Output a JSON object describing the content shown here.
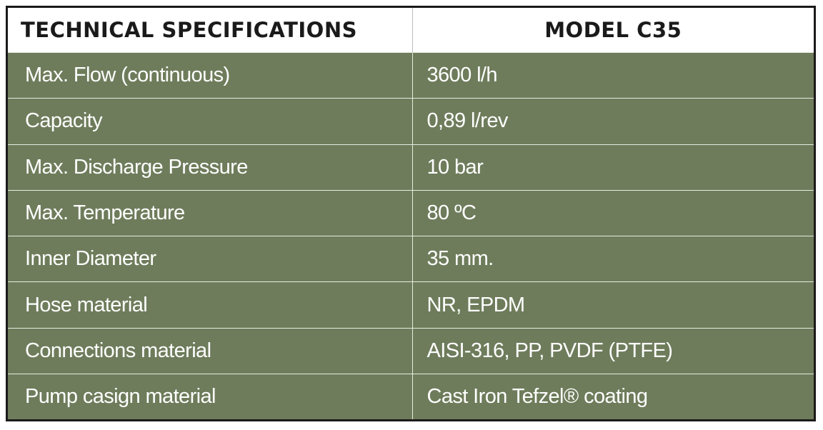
{
  "table": {
    "header": [
      "TECHNICAL SPECIFICATIONS",
      "MODEL C35"
    ],
    "rows": [
      [
        "Max. Flow (continuous)",
        "3600 l/h"
      ],
      [
        "Capacity",
        "0,89 l/rev"
      ],
      [
        "Max. Discharge Pressure",
        "10 bar"
      ],
      [
        "Max. Temperature",
        "80 ºC"
      ],
      [
        "Inner Diameter",
        "35 mm."
      ],
      [
        "Hose material",
        "NR, EPDM"
      ],
      [
        "Connections material",
        "AISI-316, PP, PVDF (PTFE)"
      ],
      [
        "Pump casign material",
        "Cast Iron Tefzel® coating"
      ]
    ]
  }
}
